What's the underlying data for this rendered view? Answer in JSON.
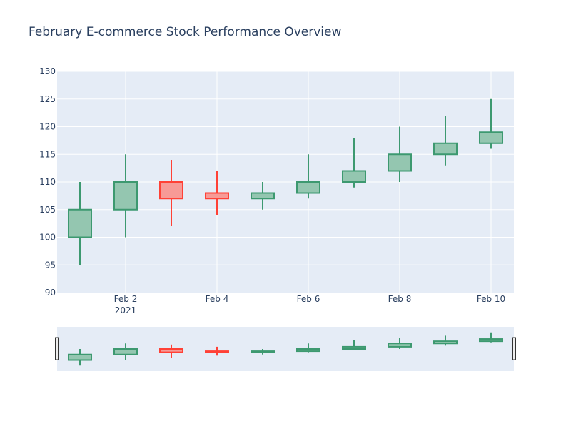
{
  "chart_data": {
    "type": "candlestick",
    "title": "February E-commerce Stock Performance Overview",
    "x_tick_labels": [
      "Feb 2",
      "Feb 4",
      "Feb 6",
      "Feb 8",
      "Feb 10"
    ],
    "x_tick_days": [
      2,
      4,
      6,
      8,
      10
    ],
    "x_year_label": "2021",
    "ylim": [
      90,
      130
    ],
    "y_ticks": [
      90,
      95,
      100,
      105,
      110,
      115,
      120,
      125,
      130
    ],
    "xlim_days": [
      0.5,
      10.5
    ],
    "range_slider": true,
    "colors": {
      "plot_bg": "#E5ECF6",
      "grid": "#ffffff",
      "increasing_line": "#3D9970",
      "increasing_fill": "#94C6B0",
      "decreasing_line": "#FF4136",
      "decreasing_fill": "#F79A96",
      "text": "#2a3f5f"
    },
    "candles": [
      {
        "date": "2021-02-01",
        "day": 1,
        "open": 100,
        "high": 110,
        "low": 95,
        "close": 105
      },
      {
        "date": "2021-02-02",
        "day": 2,
        "open": 105,
        "high": 115,
        "low": 100,
        "close": 110
      },
      {
        "date": "2021-02-03",
        "day": 3,
        "open": 110,
        "high": 114,
        "low": 102,
        "close": 107
      },
      {
        "date": "2021-02-04",
        "day": 4,
        "open": 108,
        "high": 112,
        "low": 104,
        "close": 107
      },
      {
        "date": "2021-02-05",
        "day": 5,
        "open": 107,
        "high": 110,
        "low": 105,
        "close": 108
      },
      {
        "date": "2021-02-06",
        "day": 6,
        "open": 108,
        "high": 115,
        "low": 107,
        "close": 110
      },
      {
        "date": "2021-02-07",
        "day": 7,
        "open": 110,
        "high": 118,
        "low": 109,
        "close": 112
      },
      {
        "date": "2021-02-08",
        "day": 8,
        "open": 112,
        "high": 120,
        "low": 110,
        "close": 115
      },
      {
        "date": "2021-02-09",
        "day": 9,
        "open": 115,
        "high": 122,
        "low": 113,
        "close": 117
      },
      {
        "date": "2021-02-10",
        "day": 10,
        "open": 117,
        "high": 125,
        "low": 116,
        "close": 119
      }
    ]
  }
}
